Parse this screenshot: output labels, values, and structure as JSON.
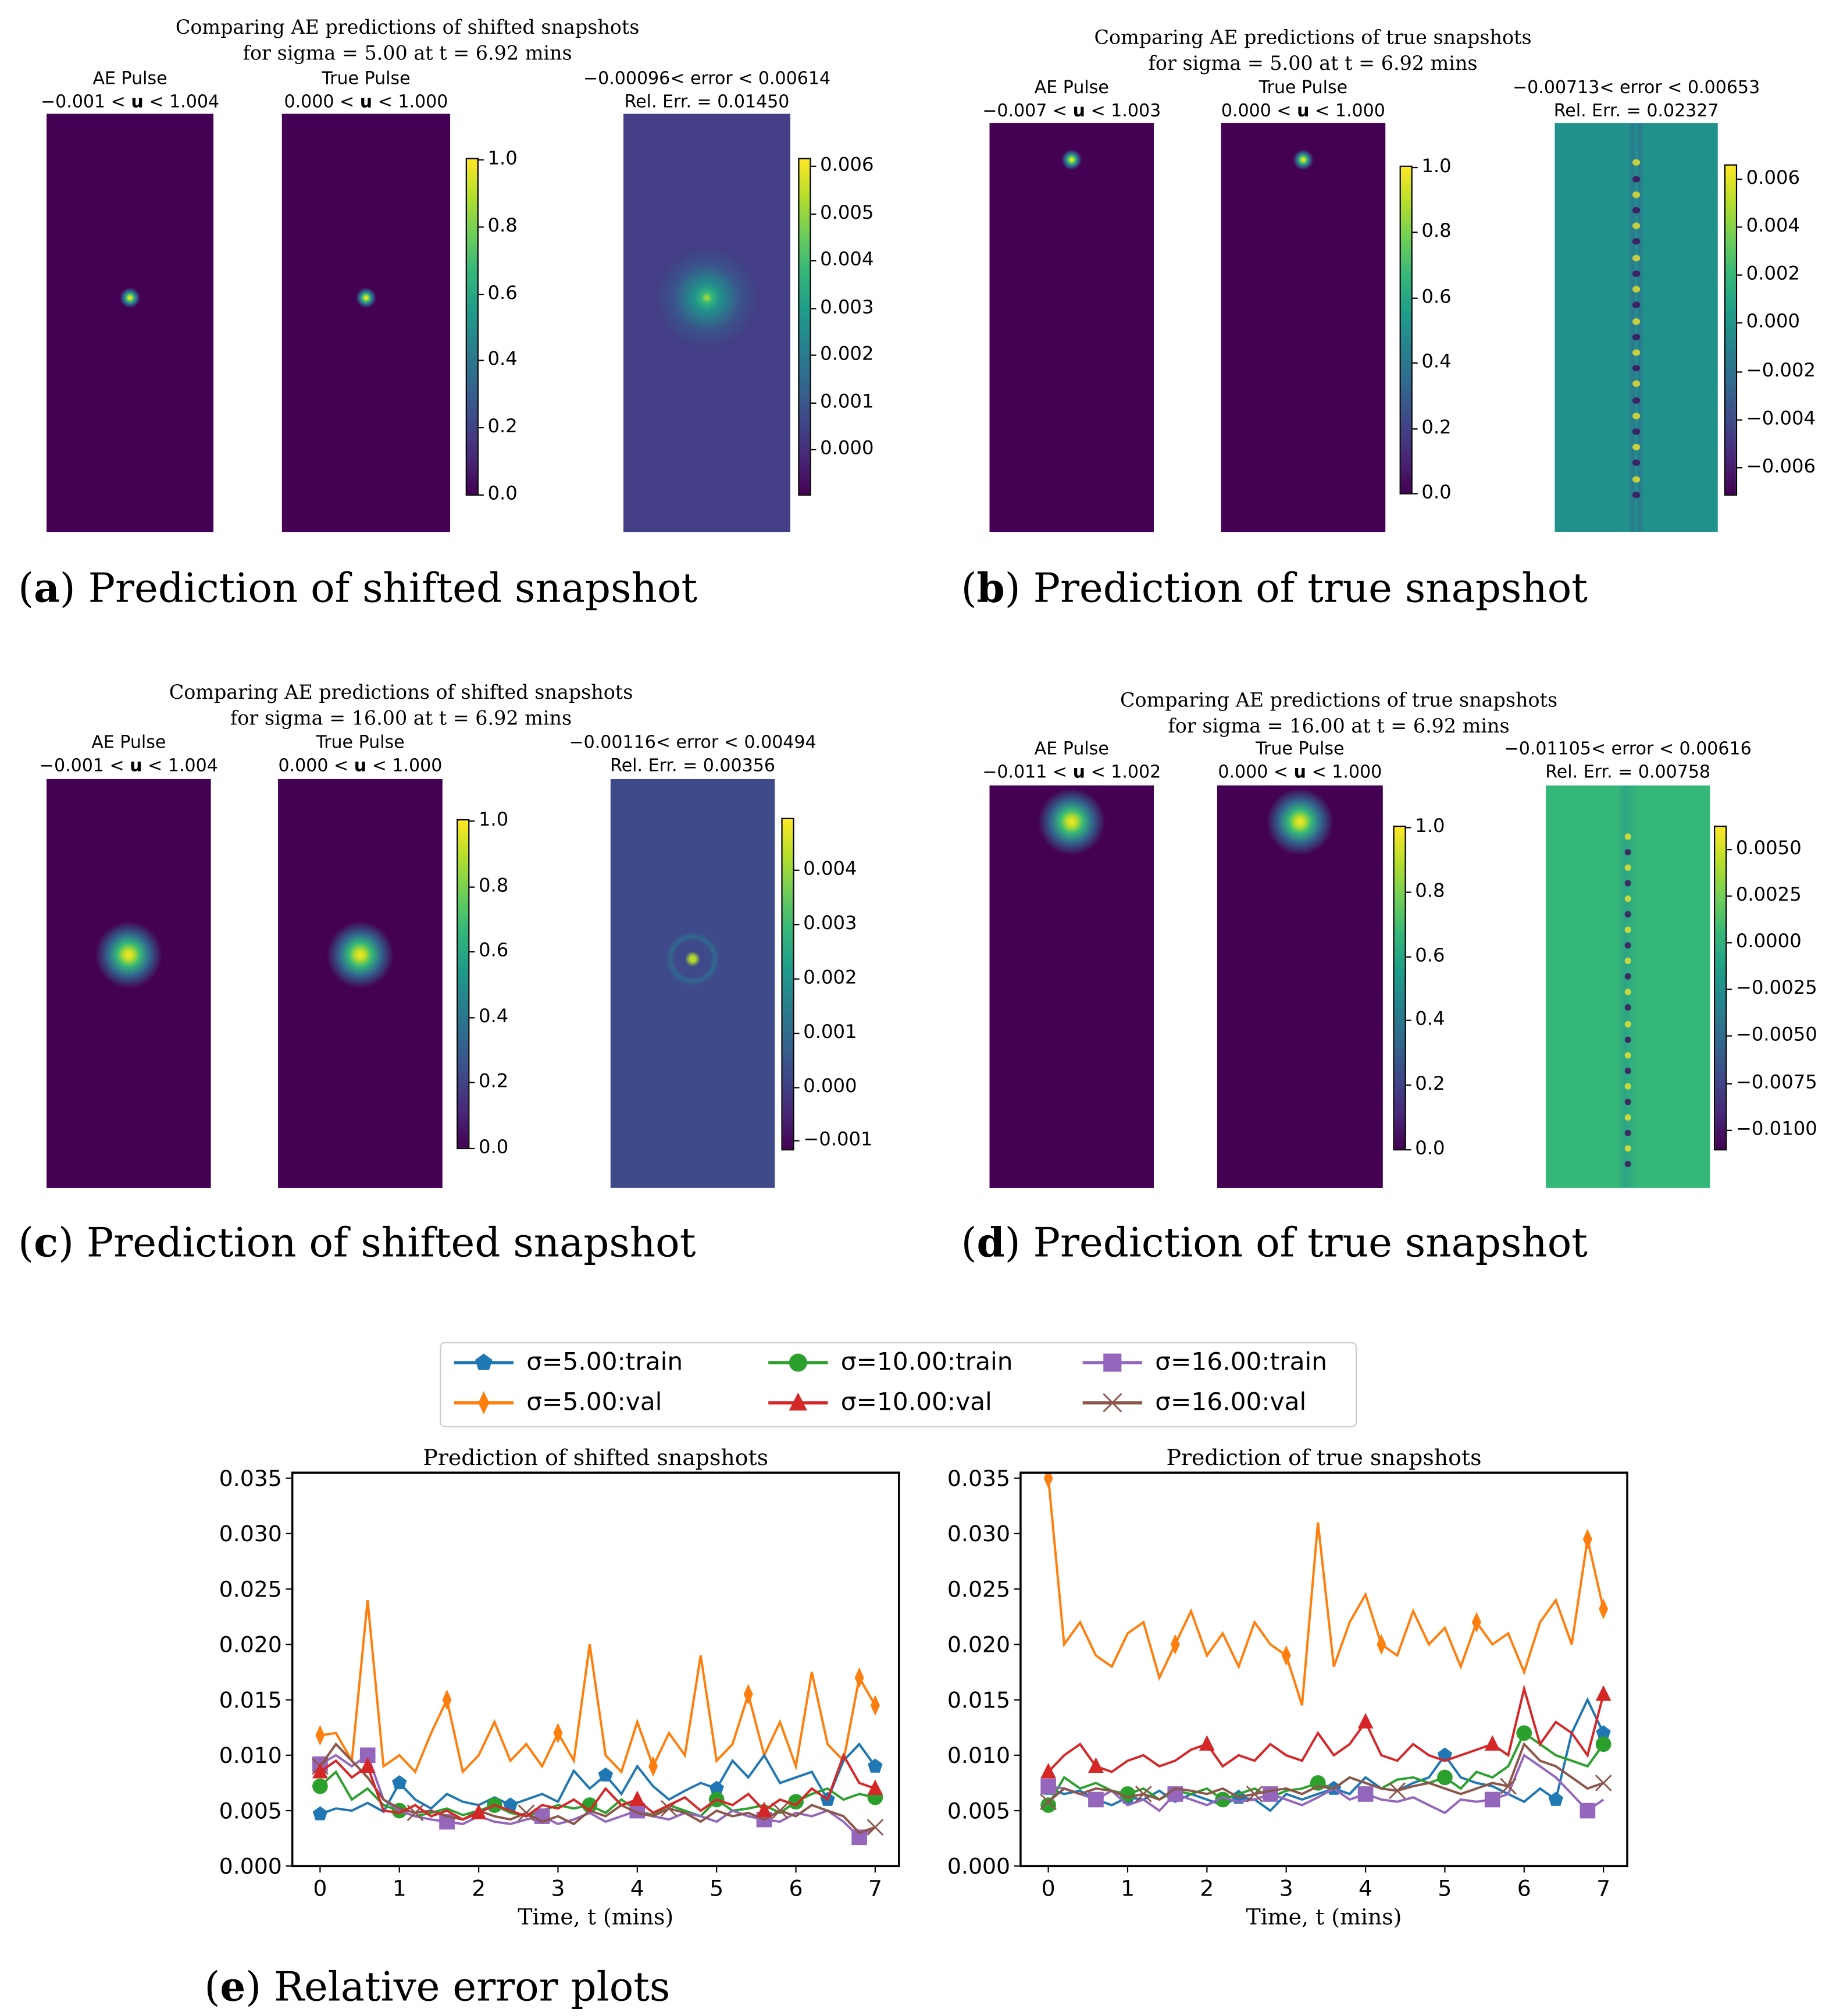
{
  "panels": [
    {
      "id": "a",
      "title_line1": "Comparing AE predictions of shifted snapshots",
      "title_line2": "for sigma = 5.00 at t = 6.92 mins",
      "ae_label": "AE Pulse",
      "ae_range_lo": "−0.001 <",
      "ae_range_hi": "< 1.004",
      "true_label": "True Pulse",
      "true_range_lo": "0.000 <",
      "true_range_hi": "< 1.000",
      "err_label": "−0.00096< error < 0.00614",
      "rel_err": "Rel. Err. = 0.01450",
      "pulse_ticks": [
        "0.0",
        "0.2",
        "0.4",
        "0.6",
        "0.8",
        "1.0"
      ],
      "err_ticks": [
        "0.000",
        "0.001",
        "0.002",
        "0.003",
        "0.004",
        "0.005",
        "0.006"
      ],
      "err_min": -0.00096,
      "err_max": 0.00614,
      "caption_letter": "a",
      "caption": "Prediction of shifted snapshot"
    },
    {
      "id": "b",
      "title_line1": "Comparing AE predictions of true snapshots",
      "title_line2": "for sigma = 5.00 at t = 6.92 mins",
      "ae_label": "AE Pulse",
      "ae_range_lo": "−0.007 <",
      "ae_range_hi": "< 1.003",
      "true_label": "True Pulse",
      "true_range_lo": "0.000 <",
      "true_range_hi": "< 1.000",
      "err_label": "−0.00713< error < 0.00653",
      "rel_err": "Rel. Err. = 0.02327",
      "pulse_ticks": [
        "0.0",
        "0.2",
        "0.4",
        "0.6",
        "0.8",
        "1.0"
      ],
      "err_ticks": [
        "−0.006",
        "−0.004",
        "−0.002",
        "0.000",
        "0.002",
        "0.004",
        "0.006"
      ],
      "err_min": -0.00713,
      "err_max": 0.00653,
      "caption_letter": "b",
      "caption": "Prediction of true snapshot"
    },
    {
      "id": "c",
      "title_line1": "Comparing AE predictions of shifted snapshots",
      "title_line2": "for sigma = 16.00 at t = 6.92 mins",
      "ae_label": "AE Pulse",
      "ae_range_lo": "−0.001 <",
      "ae_range_hi": "< 1.004",
      "true_label": "True Pulse",
      "true_range_lo": "0.000 <",
      "true_range_hi": "< 1.000",
      "err_label": "−0.00116< error < 0.00494",
      "rel_err": "Rel. Err. = 0.00356",
      "pulse_ticks": [
        "0.0",
        "0.2",
        "0.4",
        "0.6",
        "0.8",
        "1.0"
      ],
      "err_ticks": [
        "−0.001",
        "0.000",
        "0.001",
        "0.002",
        "0.003",
        "0.004"
      ],
      "err_min": -0.00116,
      "err_max": 0.00494,
      "caption_letter": "c",
      "caption": "Prediction of shifted snapshot"
    },
    {
      "id": "d",
      "title_line1": "Comparing AE predictions of true snapshots",
      "title_line2": "for sigma = 16.00 at t = 6.92 mins",
      "ae_label": "AE Pulse",
      "ae_range_lo": "−0.011 <",
      "ae_range_hi": "< 1.002",
      "true_label": "True Pulse",
      "true_range_lo": "0.000 <",
      "true_range_hi": "< 1.000",
      "err_label": "−0.01105< error < 0.00616",
      "rel_err": "Rel. Err. = 0.00758",
      "pulse_ticks": [
        "0.0",
        "0.2",
        "0.4",
        "0.6",
        "0.8",
        "1.0"
      ],
      "err_ticks": [
        "−0.0100",
        "−0.0075",
        "−0.0050",
        "−0.0025",
        "0.0000",
        "0.0025",
        "0.0050"
      ],
      "err_min": -0.01105,
      "err_max": 0.00616,
      "caption_letter": "d",
      "caption": "Prediction of true snapshot"
    }
  ],
  "u_symbol": "u",
  "caption_e_letter": "e",
  "caption_e": "Relative error plots",
  "chart_data": [
    {
      "type": "line",
      "title": "Prediction of shifted snapshots",
      "xlabel": "Time, t (mins)",
      "ylabel": "",
      "xlim": [
        -0.35,
        7.3
      ],
      "ylim": [
        0,
        0.0355
      ],
      "xticks": [
        "0",
        "1",
        "2",
        "3",
        "4",
        "5",
        "6",
        "7"
      ],
      "yticks": [
        "0.000",
        "0.005",
        "0.010",
        "0.015",
        "0.020",
        "0.025",
        "0.030",
        "0.035"
      ],
      "x_start": 0,
      "x_step": 0.2,
      "series": [
        {
          "name": "σ=5.00:train",
          "color": "#1f77b4",
          "marker": "pentagon",
          "values": [
            0.0047,
            0.0052,
            0.005,
            0.0057,
            0.0049,
            0.0075,
            0.006,
            0.0052,
            0.0065,
            0.0058,
            0.0055,
            0.0062,
            0.0055,
            0.006,
            0.0065,
            0.0058,
            0.0086,
            0.007,
            0.0082,
            0.0065,
            0.009,
            0.0072,
            0.006,
            0.0068,
            0.0075,
            0.007,
            0.0095,
            0.008,
            0.01,
            0.0075,
            0.008,
            0.0085,
            0.006,
            0.0095,
            0.011,
            0.009
          ]
        },
        {
          "name": "σ=5.00:val",
          "color": "#ff7f0e",
          "marker": "diamond",
          "values": [
            0.0118,
            0.012,
            0.0095,
            0.024,
            0.009,
            0.01,
            0.0085,
            0.012,
            0.015,
            0.0085,
            0.01,
            0.013,
            0.0095,
            0.011,
            0.009,
            0.012,
            0.0095,
            0.02,
            0.01,
            0.0085,
            0.013,
            0.009,
            0.012,
            0.01,
            0.019,
            0.0095,
            0.011,
            0.0155,
            0.01,
            0.013,
            0.009,
            0.0175,
            0.011,
            0.0095,
            0.017,
            0.0145
          ]
        },
        {
          "name": "σ=10.00:train",
          "color": "#2ca02c",
          "marker": "circle",
          "values": [
            0.0072,
            0.0085,
            0.006,
            0.007,
            0.0055,
            0.005,
            0.0045,
            0.0048,
            0.0052,
            0.0046,
            0.005,
            0.0055,
            0.0048,
            0.0045,
            0.005,
            0.0055,
            0.0052,
            0.0055,
            0.0048,
            0.006,
            0.005,
            0.0046,
            0.0055,
            0.005,
            0.0045,
            0.006,
            0.005,
            0.0052,
            0.0055,
            0.0048,
            0.0058,
            0.0065,
            0.007,
            0.006,
            0.0065,
            0.0062
          ]
        },
        {
          "name": "σ=10.00:val",
          "color": "#d62728",
          "marker": "triangle",
          "values": [
            0.0085,
            0.0095,
            0.008,
            0.009,
            0.005,
            0.0048,
            0.0055,
            0.0045,
            0.005,
            0.0042,
            0.0048,
            0.0055,
            0.005,
            0.0045,
            0.0055,
            0.0052,
            0.006,
            0.005,
            0.007,
            0.0055,
            0.006,
            0.0048,
            0.0055,
            0.0062,
            0.005,
            0.006,
            0.0055,
            0.0065,
            0.005,
            0.006,
            0.0055,
            0.007,
            0.006,
            0.01,
            0.0075,
            0.007
          ]
        },
        {
          "name": "σ=16.00:train",
          "color": "#9467bd",
          "marker": "square",
          "values": [
            0.0092,
            0.01,
            0.009,
            0.01,
            0.006,
            0.005,
            0.0045,
            0.0042,
            0.004,
            0.0038,
            0.0045,
            0.004,
            0.0038,
            0.0042,
            0.0045,
            0.0038,
            0.0042,
            0.0048,
            0.004,
            0.0045,
            0.005,
            0.0045,
            0.0042,
            0.0048,
            0.0045,
            0.004,
            0.005,
            0.0045,
            0.0042,
            0.004,
            0.0048,
            0.0045,
            0.005,
            0.004,
            0.0026,
            0.0035
          ]
        },
        {
          "name": "σ=16.00:val",
          "color": "#8c564b",
          "marker": "x",
          "values": [
            0.009,
            0.011,
            0.0095,
            0.008,
            0.006,
            0.0052,
            0.0048,
            0.005,
            0.0045,
            0.0042,
            0.005,
            0.0045,
            0.0042,
            0.0048,
            0.004,
            0.0045,
            0.0038,
            0.005,
            0.0045,
            0.0055,
            0.0048,
            0.0045,
            0.0052,
            0.0048,
            0.004,
            0.005,
            0.0045,
            0.0048,
            0.0042,
            0.005,
            0.0045,
            0.0055,
            0.005,
            0.0045,
            0.003,
            0.0035
          ]
        }
      ]
    },
    {
      "type": "line",
      "title": "Prediction of true snapshots",
      "xlabel": "Time, t (mins)",
      "ylabel": "",
      "xlim": [
        -0.35,
        7.3
      ],
      "ylim": [
        0,
        0.0355
      ],
      "xticks": [
        "0",
        "1",
        "2",
        "3",
        "4",
        "5",
        "6",
        "7"
      ],
      "yticks": [
        "0.000",
        "0.005",
        "0.010",
        "0.015",
        "0.020",
        "0.025",
        "0.030",
        "0.035"
      ],
      "x_start": 0,
      "x_step": 0.2,
      "series": [
        {
          "name": "σ=5.00:train",
          "color": "#1f77b4",
          "marker": "pentagon",
          "values": [
            0.007,
            0.0065,
            0.0068,
            0.006,
            0.0055,
            0.0062,
            0.006,
            0.0068,
            0.0058,
            0.0065,
            0.006,
            0.0055,
            0.0062,
            0.006,
            0.005,
            0.0065,
            0.006,
            0.0065,
            0.007,
            0.0065,
            0.008,
            0.007,
            0.0068,
            0.0075,
            0.008,
            0.01,
            0.008,
            0.0075,
            0.0072,
            0.0065,
            0.0058,
            0.007,
            0.006,
            0.012,
            0.015,
            0.012
          ]
        },
        {
          "name": "σ=5.00:val",
          "color": "#ff7f0e",
          "marker": "diamond",
          "values": [
            0.035,
            0.02,
            0.022,
            0.019,
            0.018,
            0.021,
            0.022,
            0.017,
            0.02,
            0.023,
            0.019,
            0.021,
            0.018,
            0.022,
            0.02,
            0.019,
            0.0145,
            0.031,
            0.018,
            0.022,
            0.0245,
            0.02,
            0.019,
            0.023,
            0.02,
            0.0215,
            0.018,
            0.022,
            0.02,
            0.021,
            0.0175,
            0.022,
            0.024,
            0.02,
            0.0295,
            0.0232
          ]
        },
        {
          "name": "σ=10.00:train",
          "color": "#2ca02c",
          "marker": "circle",
          "values": [
            0.0055,
            0.008,
            0.007,
            0.0075,
            0.0068,
            0.0065,
            0.007,
            0.006,
            0.0068,
            0.0065,
            0.007,
            0.006,
            0.0065,
            0.007,
            0.0062,
            0.0068,
            0.007,
            0.0075,
            0.007,
            0.008,
            0.0075,
            0.007,
            0.0078,
            0.008,
            0.0075,
            0.008,
            0.007,
            0.0085,
            0.008,
            0.009,
            0.012,
            0.011,
            0.01,
            0.0095,
            0.009,
            0.011
          ]
        },
        {
          "name": "σ=10.00:val",
          "color": "#d62728",
          "marker": "triangle",
          "values": [
            0.0085,
            0.01,
            0.011,
            0.009,
            0.0085,
            0.0095,
            0.01,
            0.009,
            0.0095,
            0.0105,
            0.011,
            0.009,
            0.01,
            0.0095,
            0.011,
            0.01,
            0.0095,
            0.012,
            0.01,
            0.011,
            0.013,
            0.01,
            0.0095,
            0.011,
            0.01,
            0.0095,
            0.01,
            0.0105,
            0.011,
            0.01,
            0.016,
            0.011,
            0.013,
            0.012,
            0.01,
            0.0155
          ]
        },
        {
          "name": "σ=16.00:train",
          "color": "#9467bd",
          "marker": "square",
          "values": [
            0.0072,
            0.007,
            0.0065,
            0.006,
            0.0068,
            0.0055,
            0.006,
            0.005,
            0.0065,
            0.006,
            0.0055,
            0.0062,
            0.0058,
            0.006,
            0.0065,
            0.006,
            0.0055,
            0.0062,
            0.007,
            0.006,
            0.0065,
            0.006,
            0.0058,
            0.0062,
            0.0055,
            0.0048,
            0.006,
            0.0058,
            0.006,
            0.0065,
            0.01,
            0.009,
            0.008,
            0.0065,
            0.005,
            0.006
          ]
        },
        {
          "name": "σ=16.00:val",
          "color": "#8c564b",
          "marker": "x",
          "values": [
            0.0058,
            0.007,
            0.0065,
            0.007,
            0.0068,
            0.0062,
            0.0065,
            0.006,
            0.007,
            0.0068,
            0.0065,
            0.007,
            0.0062,
            0.0065,
            0.0068,
            0.007,
            0.0065,
            0.0072,
            0.007,
            0.008,
            0.0075,
            0.007,
            0.0068,
            0.0072,
            0.0075,
            0.007,
            0.0065,
            0.007,
            0.0075,
            0.0072,
            0.011,
            0.0095,
            0.009,
            0.008,
            0.007,
            0.0075
          ]
        }
      ]
    }
  ]
}
